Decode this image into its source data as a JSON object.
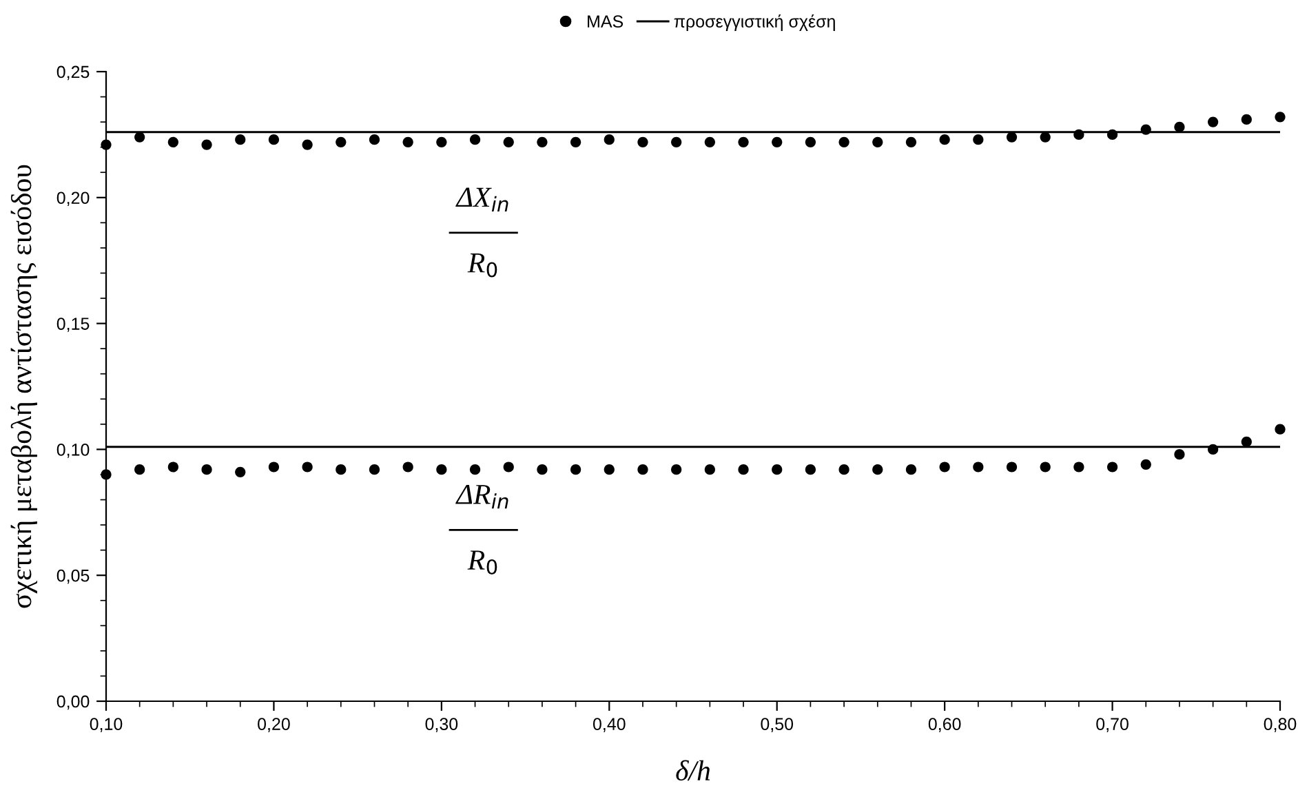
{
  "chart_data": {
    "type": "scatter",
    "xlabel": "δ/h",
    "ylabel": "σχετική μεταβολή αντίστασης εισόδου",
    "x": [
      0.1,
      0.12,
      0.14,
      0.16,
      0.18,
      0.2,
      0.22,
      0.24,
      0.26,
      0.28,
      0.3,
      0.32,
      0.34,
      0.36,
      0.38,
      0.4,
      0.42,
      0.44,
      0.46,
      0.48,
      0.5,
      0.52,
      0.54,
      0.56,
      0.58,
      0.6,
      0.62,
      0.64,
      0.66,
      0.68,
      0.7,
      0.72,
      0.74,
      0.76,
      0.78,
      0.8
    ],
    "series": [
      {
        "name": "MAS",
        "marker": "circle",
        "color": "#000000",
        "values": [
          0.221,
          0.224,
          0.222,
          0.221,
          0.223,
          0.223,
          0.221,
          0.222,
          0.223,
          0.222,
          0.222,
          0.223,
          0.222,
          0.222,
          0.222,
          0.223,
          0.222,
          0.222,
          0.222,
          0.222,
          0.222,
          0.222,
          0.222,
          0.222,
          0.222,
          0.223,
          0.223,
          0.224,
          0.224,
          0.225,
          0.225,
          0.227,
          0.228,
          0.23,
          0.231,
          0.232
        ]
      },
      {
        "marker": "circle",
        "color": "#000000",
        "values": [
          0.09,
          0.092,
          0.093,
          0.092,
          0.091,
          0.093,
          0.093,
          0.092,
          0.092,
          0.093,
          0.092,
          0.092,
          0.093,
          0.092,
          0.092,
          0.092,
          0.092,
          0.092,
          0.092,
          0.092,
          0.092,
          0.092,
          0.092,
          0.092,
          0.092,
          0.093,
          0.093,
          0.093,
          0.093,
          0.093,
          0.093,
          0.094,
          0.098,
          0.1,
          0.103,
          0.108
        ]
      },
      {
        "name": "προσεγγιστική σχέση",
        "type": "line",
        "marker": "none",
        "line_style": "solid",
        "color": "#000000",
        "values": [
          0.226,
          0.226,
          0.226,
          0.226,
          0.226,
          0.226,
          0.226,
          0.226,
          0.226,
          0.226,
          0.226,
          0.226,
          0.226,
          0.226,
          0.226,
          0.226,
          0.226,
          0.226,
          0.226,
          0.226,
          0.226,
          0.226,
          0.226,
          0.226,
          0.226,
          0.226,
          0.226,
          0.226,
          0.226,
          0.226,
          0.226,
          0.226,
          0.226,
          0.226,
          0.226,
          0.226
        ]
      },
      {
        "type": "line",
        "marker": "none",
        "line_style": "solid",
        "color": "#000000",
        "values": [
          0.101,
          0.101,
          0.101,
          0.101,
          0.101,
          0.101,
          0.101,
          0.101,
          0.101,
          0.101,
          0.101,
          0.101,
          0.101,
          0.101,
          0.101,
          0.101,
          0.101,
          0.101,
          0.101,
          0.101,
          0.101,
          0.101,
          0.101,
          0.101,
          0.101,
          0.101,
          0.101,
          0.101,
          0.101,
          0.101,
          0.101,
          0.101,
          0.101,
          0.101,
          0.101,
          0.101
        ]
      }
    ],
    "legend": "top",
    "grid": false,
    "xlim": [
      0.1,
      0.8
    ],
    "ylim": [
      0.0,
      0.25
    ],
    "xticks": [
      {
        "value": 0.1,
        "label": "0,10"
      },
      {
        "value": 0.2,
        "label": "0,20"
      },
      {
        "value": 0.3,
        "label": "0,30"
      },
      {
        "value": 0.4,
        "label": "0,40"
      },
      {
        "value": 0.5,
        "label": "0,50"
      },
      {
        "value": 0.6,
        "label": "0,60"
      },
      {
        "value": 0.7,
        "label": "0,70"
      },
      {
        "value": 0.8,
        "label": "0,80"
      }
    ],
    "yticks": [
      {
        "value": 0.0,
        "label": "0,00"
      },
      {
        "value": 0.05,
        "label": "0,05"
      },
      {
        "value": 0.1,
        "label": "0,10"
      },
      {
        "value": 0.15,
        "label": "0,15"
      },
      {
        "value": 0.2,
        "label": "0,20"
      },
      {
        "value": 0.25,
        "label": "0,25"
      }
    ],
    "annotations": [
      "ΔX$_{in}$",
      "R$_{0}$",
      "ΔR$_{in}$",
      "R$_{0}$"
    ]
  }
}
